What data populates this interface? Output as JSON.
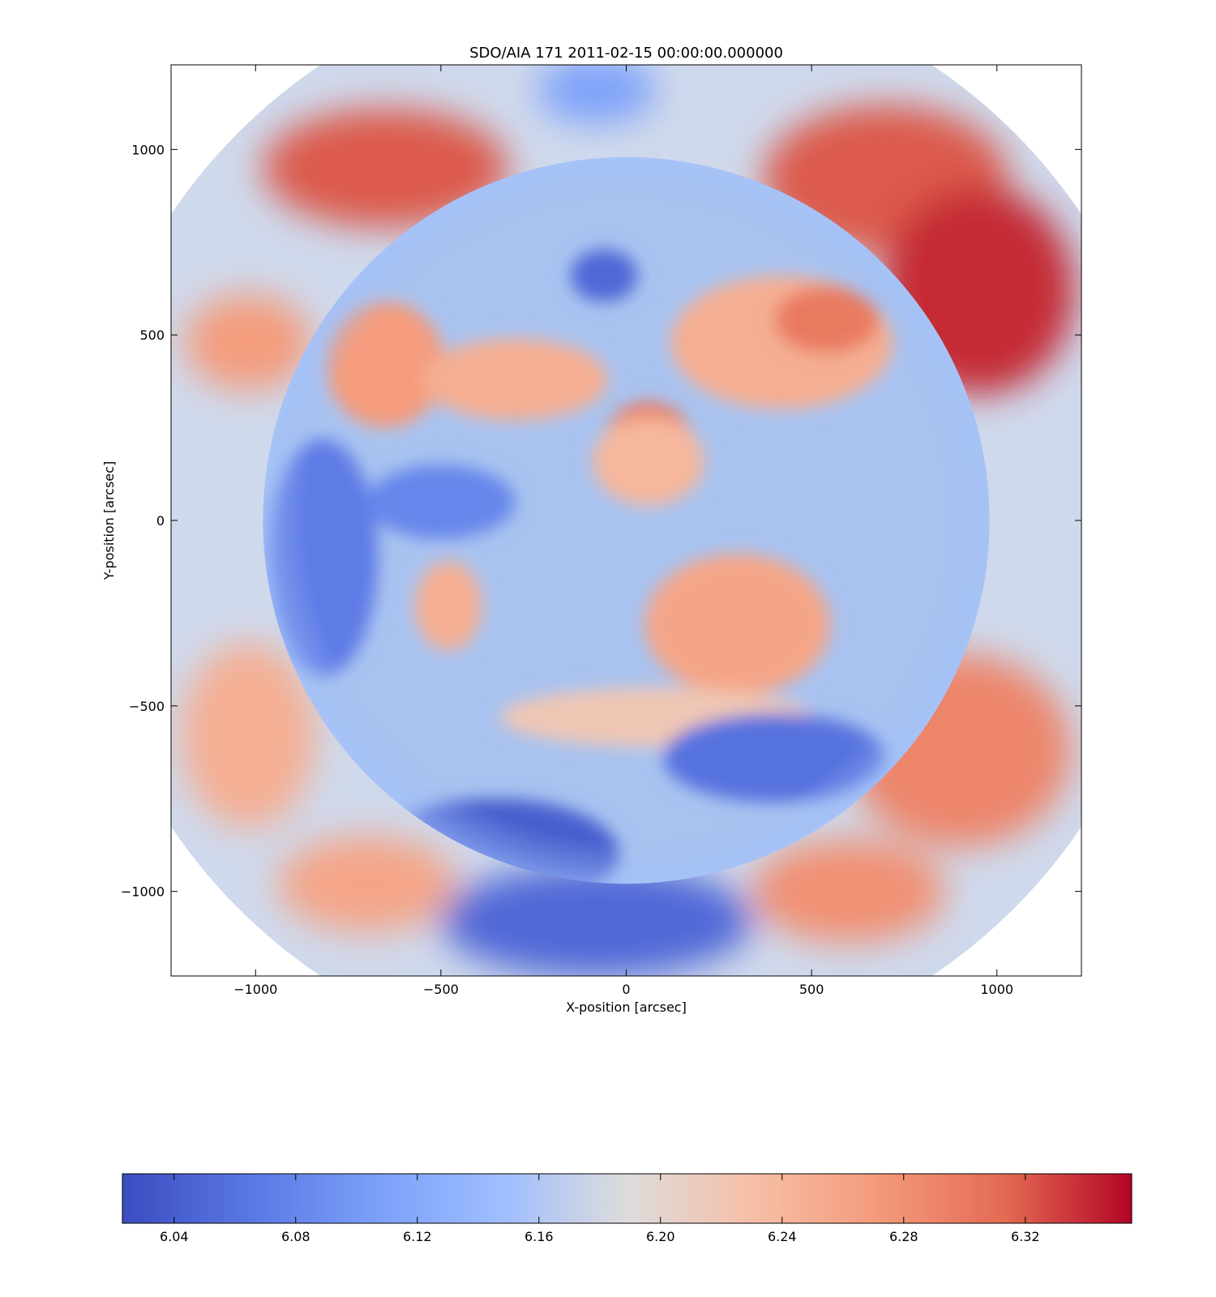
{
  "chart_data": [
    {
      "type": "heatmap",
      "title": "SDO/AIA 171 2011-02-15 00:00:00.000000",
      "xlabel": "X-position [arcsec]",
      "ylabel": "Y-position [arcsec]",
      "xlim": [
        -1228,
        1228
      ],
      "ylim": [
        -1228,
        1228
      ],
      "xticks": [
        {
          "value": -1000,
          "label": "−1000"
        },
        {
          "value": -500,
          "label": "−500"
        },
        {
          "value": 0,
          "label": "0"
        },
        {
          "value": 500,
          "label": "500"
        },
        {
          "value": 1000,
          "label": "1000"
        }
      ],
      "yticks": [
        {
          "value": 1000,
          "label": "1000"
        },
        {
          "value": 500,
          "label": "500"
        },
        {
          "value": 0,
          "label": "0"
        },
        {
          "value": -500,
          "label": "−500"
        },
        {
          "value": -1000,
          "label": "−1000"
        }
      ],
      "solar_disk_radius": 980,
      "field_of_view_radius": 1480,
      "grid": false,
      "colormap": "coolwarm",
      "colorbar_placement": "bottom",
      "regions": [
        {
          "x": -650,
          "y": 950,
          "rx": 330,
          "ry": 160,
          "level": 6.32
        },
        {
          "x": 700,
          "y": 920,
          "rx": 330,
          "ry": 200,
          "level": 6.32
        },
        {
          "x": 950,
          "y": 620,
          "rx": 260,
          "ry": 280,
          "level": 6.34
        },
        {
          "x": -1020,
          "y": 480,
          "rx": 170,
          "ry": 130,
          "level": 6.27
        },
        {
          "x": 900,
          "y": -620,
          "rx": 300,
          "ry": 260,
          "level": 6.29
        },
        {
          "x": 600,
          "y": -1000,
          "rx": 260,
          "ry": 140,
          "level": 6.28
        },
        {
          "x": -1020,
          "y": -580,
          "rx": 180,
          "ry": 250,
          "level": 6.25
        },
        {
          "x": -700,
          "y": -980,
          "rx": 240,
          "ry": 130,
          "level": 6.26
        },
        {
          "x": -80,
          "y": 1160,
          "rx": 160,
          "ry": 90,
          "level": 6.11
        },
        {
          "x": -80,
          "y": -1080,
          "rx": 420,
          "ry": 150,
          "level": 6.05
        },
        {
          "x": -650,
          "y": 420,
          "rx": 160,
          "ry": 170,
          "level": 6.27
        },
        {
          "x": -300,
          "y": 380,
          "rx": 250,
          "ry": 110,
          "level": 6.25
        },
        {
          "x": 60,
          "y": 230,
          "rx": 110,
          "ry": 90,
          "level": 6.3
        },
        {
          "x": 60,
          "y": 160,
          "rx": 150,
          "ry": 120,
          "level": 6.24
        },
        {
          "x": 420,
          "y": 480,
          "rx": 300,
          "ry": 180,
          "level": 6.25
        },
        {
          "x": 540,
          "y": 540,
          "rx": 140,
          "ry": 90,
          "level": 6.3
        },
        {
          "x": 300,
          "y": -280,
          "rx": 250,
          "ry": 190,
          "level": 6.26
        },
        {
          "x": -480,
          "y": -230,
          "rx": 90,
          "ry": 120,
          "level": 6.25
        },
        {
          "x": 80,
          "y": -530,
          "rx": 420,
          "ry": 80,
          "level": 6.22
        },
        {
          "x": -350,
          "y": -900,
          "rx": 330,
          "ry": 150,
          "level": 6.04
        },
        {
          "x": 400,
          "y": -640,
          "rx": 300,
          "ry": 120,
          "level": 6.06
        },
        {
          "x": -820,
          "y": -100,
          "rx": 150,
          "ry": 320,
          "level": 6.07
        },
        {
          "x": -60,
          "y": 660,
          "rx": 90,
          "ry": 70,
          "level": 6.05
        },
        {
          "x": -500,
          "y": 50,
          "rx": 200,
          "ry": 100,
          "level": 6.08
        }
      ]
    },
    {
      "type": "colorbar",
      "colormap": "coolwarm",
      "range": [
        6.023,
        6.355
      ],
      "ticks": [
        {
          "value": 6.04,
          "label": "6.04"
        },
        {
          "value": 6.08,
          "label": "6.08"
        },
        {
          "value": 6.12,
          "label": "6.12"
        },
        {
          "value": 6.16,
          "label": "6.16"
        },
        {
          "value": 6.2,
          "label": "6.20"
        },
        {
          "value": 6.24,
          "label": "6.24"
        },
        {
          "value": 6.28,
          "label": "6.28"
        },
        {
          "value": 6.32,
          "label": "6.32"
        }
      ]
    }
  ]
}
